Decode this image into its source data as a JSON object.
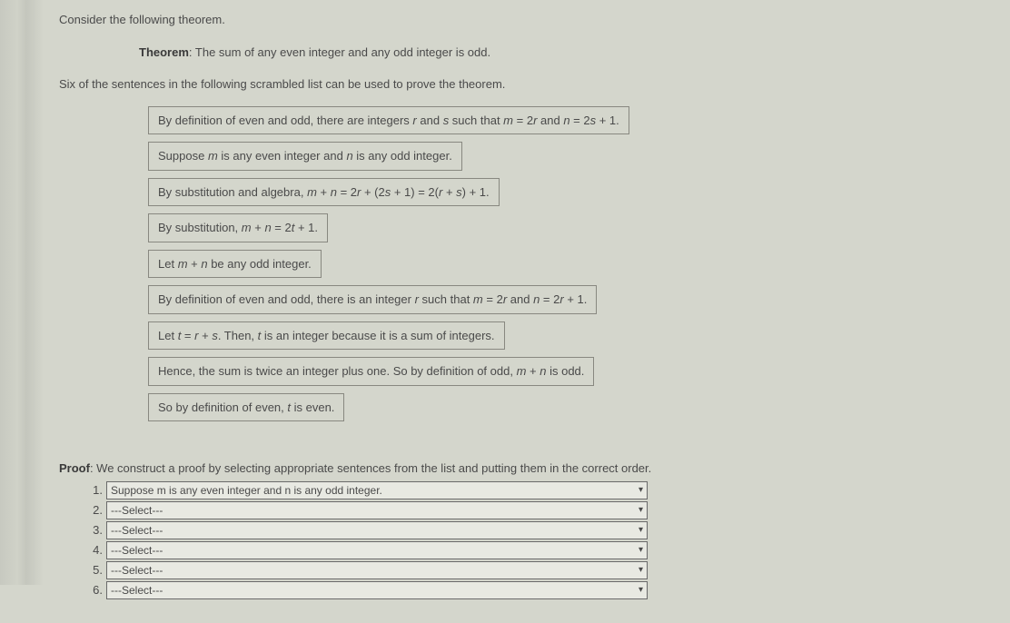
{
  "intro": "Consider the following theorem.",
  "theorem_label": "Theorem",
  "theorem_text": ": The sum of any even integer and any odd integer is odd.",
  "instruction": "Six of the sentences in the following scrambled list can be used to prove the theorem.",
  "sentences": [
    {
      "parts": [
        "By definition of even and odd, there are integers ",
        {
          "i": "r"
        },
        " and ",
        {
          "i": "s"
        },
        " such that ",
        {
          "i": "m"
        },
        " = 2",
        {
          "i": "r"
        },
        " and ",
        {
          "i": "n"
        },
        " = 2",
        {
          "i": "s"
        },
        " + 1."
      ]
    },
    {
      "parts": [
        "Suppose ",
        {
          "i": "m"
        },
        " is any even integer and ",
        {
          "i": "n"
        },
        " is any odd integer."
      ]
    },
    {
      "parts": [
        "By substitution and algebra, ",
        {
          "i": "m"
        },
        " + ",
        {
          "i": "n"
        },
        " = 2",
        {
          "i": "r"
        },
        " + (2",
        {
          "i": "s"
        },
        " + 1) = 2(",
        {
          "i": "r"
        },
        " + ",
        {
          "i": "s"
        },
        ") + 1."
      ]
    },
    {
      "parts": [
        "By substitution, ",
        {
          "i": "m"
        },
        " + ",
        {
          "i": "n"
        },
        " = 2",
        {
          "i": "t"
        },
        " + 1."
      ]
    },
    {
      "parts": [
        "Let ",
        {
          "i": "m"
        },
        " + ",
        {
          "i": "n"
        },
        " be any odd integer."
      ]
    },
    {
      "parts": [
        "By definition of even and odd, there is an integer ",
        {
          "i": "r"
        },
        " such that ",
        {
          "i": "m"
        },
        " = 2",
        {
          "i": "r"
        },
        " and ",
        {
          "i": "n"
        },
        " = 2",
        {
          "i": "r"
        },
        " + 1."
      ]
    },
    {
      "parts": [
        "Let ",
        {
          "i": "t"
        },
        " = ",
        {
          "i": "r"
        },
        " + ",
        {
          "i": "s"
        },
        ". Then, ",
        {
          "i": "t"
        },
        " is an integer because it is a sum of integers."
      ]
    },
    {
      "parts": [
        "Hence, the sum is twice an integer plus one. So by definition of odd, ",
        {
          "i": "m"
        },
        " + ",
        {
          "i": "n"
        },
        " is odd."
      ]
    },
    {
      "parts": [
        "So by definition of even, ",
        {
          "i": "t"
        },
        " is even."
      ]
    }
  ],
  "proof_label": "Proof",
  "proof_intro": ": We construct a proof by selecting appropriate sentences from the list and putting them in the correct order.",
  "steps": [
    {
      "num": "1.",
      "value": "Suppose m is any even integer and n is any odd integer."
    },
    {
      "num": "2.",
      "value": "---Select---"
    },
    {
      "num": "3.",
      "value": "---Select---"
    },
    {
      "num": "4.",
      "value": "---Select---"
    },
    {
      "num": "5.",
      "value": "---Select---"
    },
    {
      "num": "6.",
      "value": "---Select---"
    }
  ],
  "colors": {
    "page_bg": "#d4d6cc",
    "text": "#4a4a4a",
    "box_border": "#888880",
    "select_bg": "#e8e9e2",
    "select_border": "#6a6a6a"
  }
}
